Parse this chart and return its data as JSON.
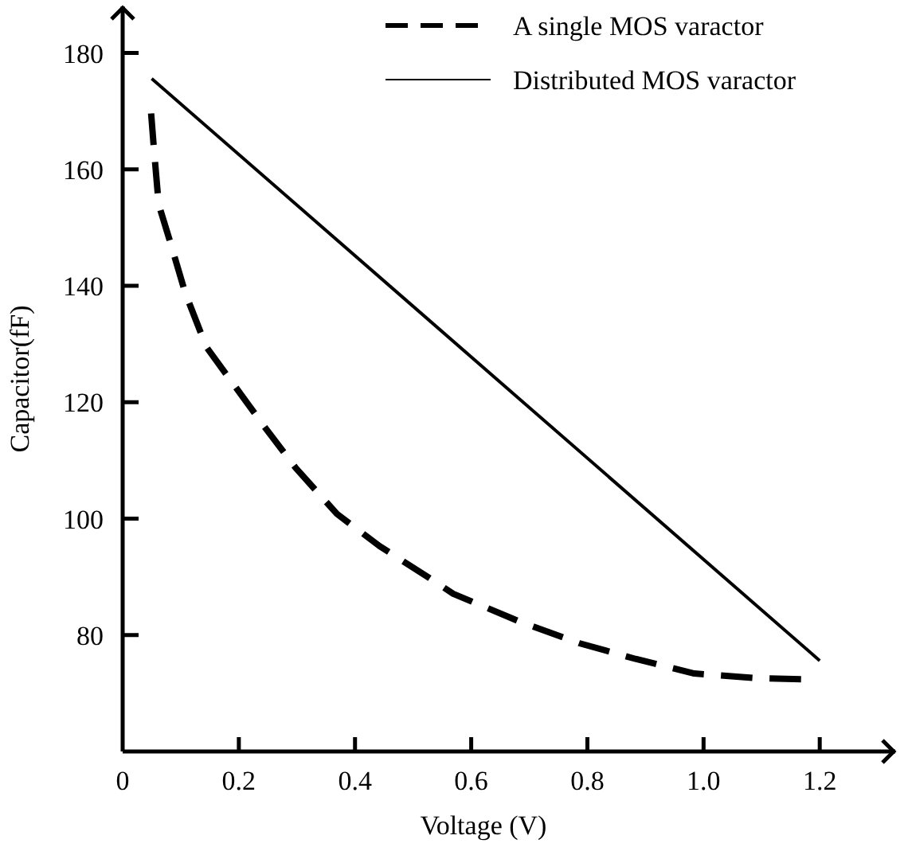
{
  "chart_data": {
    "type": "line",
    "xlabel": "Voltage (V)",
    "ylabel": "Capacitor(fF)",
    "xlim": [
      0,
      1.33
    ],
    "ylim": [
      60,
      188
    ],
    "xticks": [
      0,
      0.2,
      0.4,
      0.6,
      0.8,
      {
        "value": 1,
        "label": "1.0"
      },
      1.2
    ],
    "yticks": [
      80,
      100,
      120,
      140,
      160,
      180
    ],
    "legend": "top right",
    "grid": false,
    "marker": "none",
    "series": [
      {
        "name": "A single MOS varactor",
        "color": "#000000",
        "line_style": "dashed",
        "x": [
          0.049,
          0.054,
          0.062,
          0.081,
          0.108,
          0.144,
          0.19,
          0.244,
          0.298,
          0.369,
          0.442,
          0.531,
          0.569,
          0.686,
          0.786,
          0.883,
          0.984,
          1.092,
          1.168
        ],
        "values": [
          169.6,
          163.3,
          154,
          147.8,
          138.7,
          129.5,
          123.2,
          115.8,
          108.7,
          100.8,
          95.3,
          89.6,
          87.1,
          82.2,
          78.6,
          75.9,
          73.4,
          72.6,
          72.4
        ]
      },
      {
        "name": "Distributed MOS varactor",
        "color": "#000000",
        "line_style": "solid",
        "x": [
          0.05,
          1.2
        ],
        "values": [
          175.6,
          75.6
        ]
      }
    ]
  }
}
